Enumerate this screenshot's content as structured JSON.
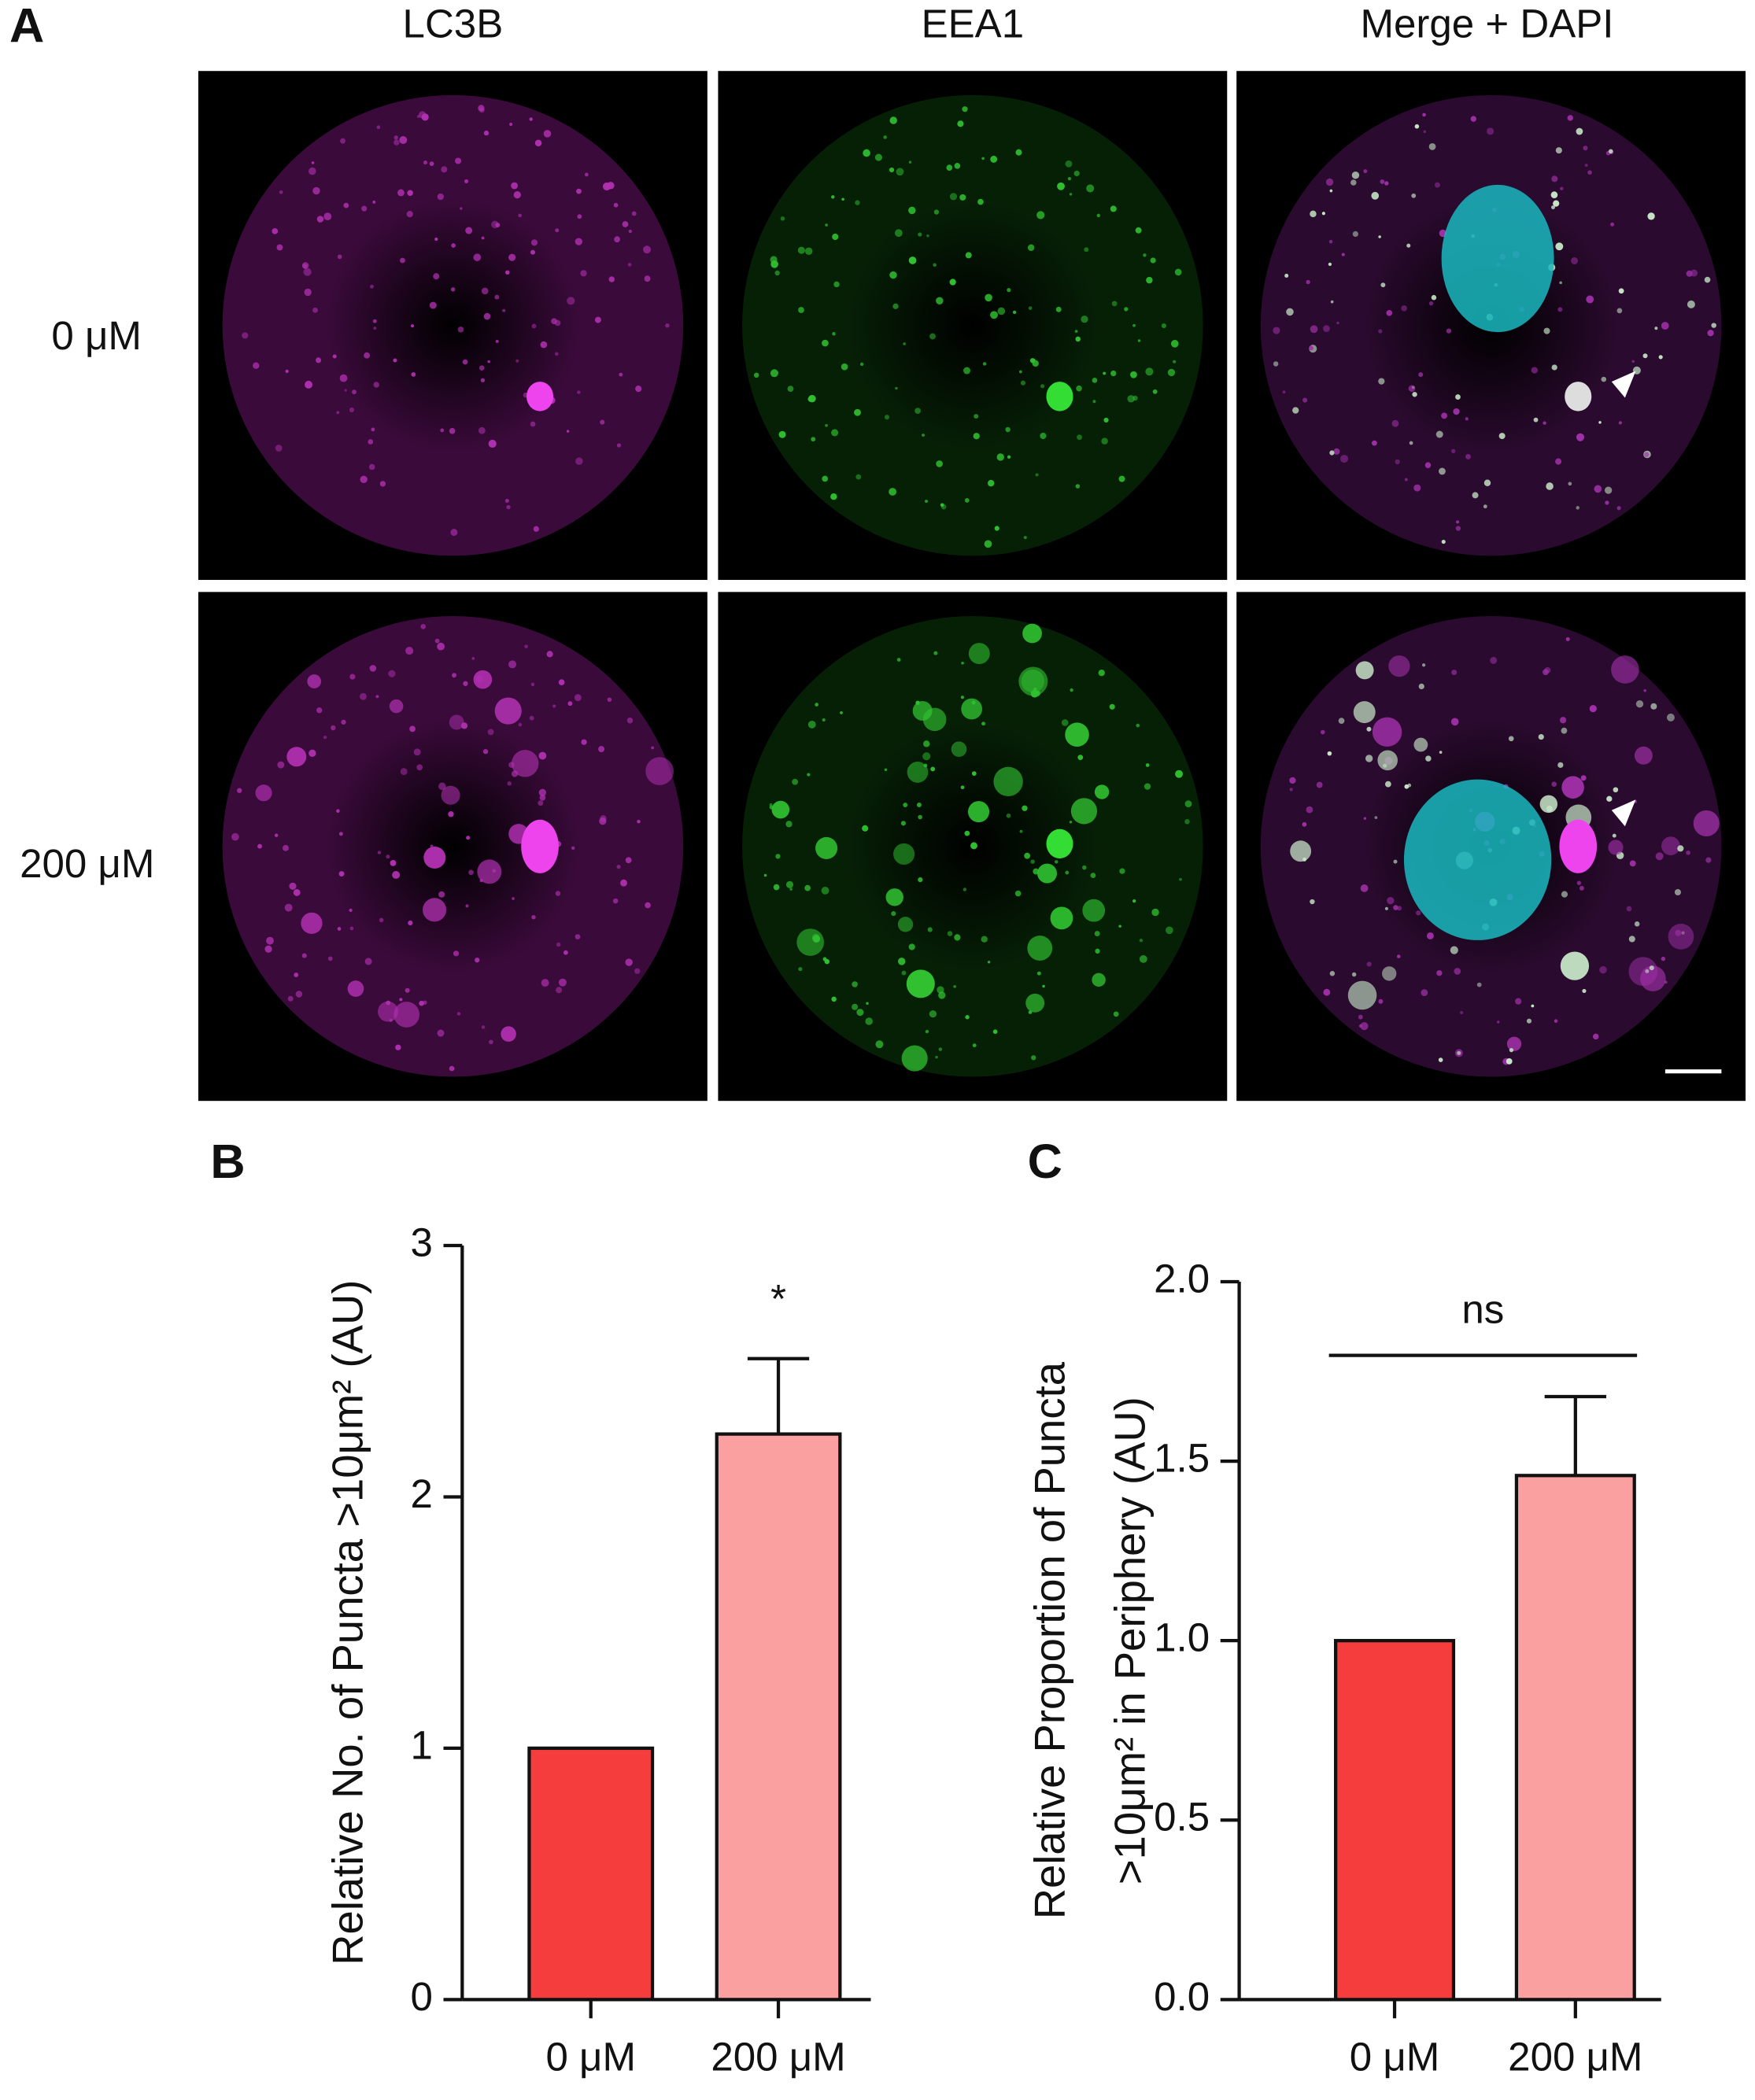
{
  "panel_a": {
    "label": "A",
    "columns": [
      "LC3B",
      "EEA1",
      "Merge + DAPI"
    ],
    "rows": [
      "0 μM",
      "200 μM"
    ]
  },
  "chart_data": [
    {
      "type": "bar",
      "panel_label": "B",
      "y_label": [
        "Relative No. of Puncta >10μm² (AU)"
      ],
      "categories": [
        "0 μM",
        "200 μM"
      ],
      "values": [
        1,
        2.25
      ],
      "errors": [
        null,
        0.3
      ],
      "colors": [
        "#f53d3d",
        "#fba0a0"
      ],
      "annotation": "*",
      "ylim": [
        0,
        3
      ],
      "yticks": [
        0,
        1,
        2,
        3
      ]
    },
    {
      "type": "bar",
      "panel_label": "C",
      "y_label": [
        "Relative Proportion of Puncta",
        ">10μm² in Periphery (AU)"
      ],
      "categories": [
        "0 μM",
        "200 μM"
      ],
      "values": [
        1,
        1.46
      ],
      "errors": [
        null,
        0.22
      ],
      "colors": [
        "#f53d3d",
        "#fba0a0"
      ],
      "annotation": "ns",
      "ylim": [
        0,
        2
      ],
      "yticks": [
        {
          "value": 0,
          "label": "0.0"
        },
        0.5,
        {
          "value": 1,
          "label": "1.0"
        },
        1.5,
        {
          "value": 2,
          "label": "2.0"
        }
      ]
    }
  ]
}
